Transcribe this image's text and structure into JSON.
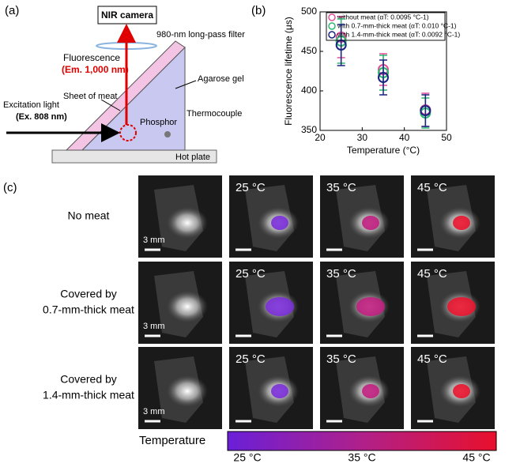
{
  "diagram": {
    "panel_label": "(a)",
    "camera": "NIR camera",
    "filter": "980-nm long-pass filter",
    "fluorescence": "Fluorescence",
    "emission": "(Em. 1,000 nm)",
    "meat": "Sheet of meat",
    "gel": "Agarose gel",
    "excitation": "Excitation light",
    "excitation_wavelength": "(Ex. 808 nm)",
    "phosphor": "Phosphor",
    "thermocouple": "Thermocouple",
    "hot_plate": "Hot plate"
  },
  "chart_data": {
    "type": "scatter",
    "panel_label": "(b)",
    "x_label": "Temperature (°C)",
    "y_label": "Fluorescence lifetime (μs)",
    "x": [
      25,
      35,
      45
    ],
    "xlim": [
      20,
      50
    ],
    "xticks": [
      20,
      30,
      40,
      50
    ],
    "ylim": [
      350,
      500
    ],
    "yticks": [
      350,
      400,
      450,
      500
    ],
    "legend": "upper right",
    "series": [
      {
        "name": "without meat (αT: 0.0095 °C-1)",
        "color": "#e0509a",
        "values": [
          468,
          427,
          376
        ],
        "errors": [
          26,
          20,
          21
        ]
      },
      {
        "name": "with 0.7-mm-thick meat (αT: 0.010 °C-1)",
        "color": "#2db870",
        "values": [
          463,
          423,
          372
        ],
        "errors": [
          28,
          22,
          19
        ]
      },
      {
        "name": "with 1.4-mm-thick meat (αT: 0.0092 °C-1)",
        "color": "#1a2380",
        "values": [
          458,
          417,
          375
        ],
        "errors": [
          26,
          22,
          20
        ]
      }
    ]
  },
  "images": {
    "panel_label": "(c)",
    "rows": [
      {
        "label": [
          "No meat"
        ],
        "scale": "3 mm",
        "temps": [
          "25 °C",
          "35 °C",
          "45 °C"
        ]
      },
      {
        "label": [
          "Covered by",
          "0.7-mm-thick meat"
        ],
        "scale": "3 mm",
        "temps": [
          "25 °C",
          "35 °C",
          "45 °C"
        ]
      },
      {
        "label": [
          "Covered by",
          "1.4-mm-thick meat"
        ],
        "scale": "3 mm",
        "temps": [
          "25 °C",
          "35 °C",
          "45 °C"
        ]
      }
    ],
    "colorbar": {
      "title": "Temperature",
      "labels": [
        "25 °C",
        "35 °C",
        "45 °C"
      ]
    }
  }
}
